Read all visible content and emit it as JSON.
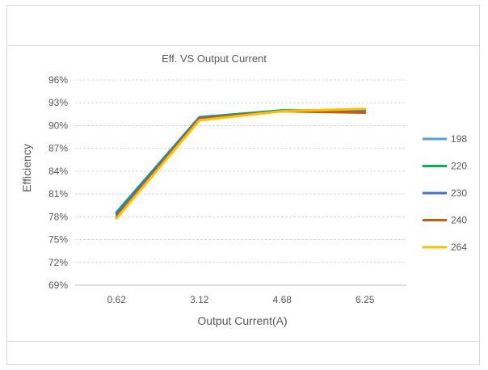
{
  "chart_data": {
    "type": "line",
    "title": "Eff. VS Output Current",
    "xlabel": "Output Current(A)",
    "ylabel": "Efficiency",
    "categories": [
      "0.62",
      "3.12",
      "4.68",
      "6.25"
    ],
    "yticks": [
      "96%",
      "93%",
      "90%",
      "87%",
      "84%",
      "81%",
      "78%",
      "75%",
      "72%",
      "69%"
    ],
    "ylim": [
      69,
      96
    ],
    "grid": true,
    "legend_position": "right",
    "series": [
      {
        "name": "198",
        "color": "#5b9bd5",
        "values": [
          78.2,
          91.0,
          91.9,
          92.1
        ]
      },
      {
        "name": "220",
        "color": "#00b050",
        "values": [
          78.6,
          91.1,
          92.0,
          92.0
        ]
      },
      {
        "name": "230",
        "color": "#4472c4",
        "values": [
          78.4,
          91.0,
          91.9,
          92.0
        ]
      },
      {
        "name": "240",
        "color": "#c55a11",
        "values": [
          78.0,
          90.9,
          91.9,
          91.7
        ]
      },
      {
        "name": "264",
        "color": "#ffc000",
        "values": [
          77.8,
          90.7,
          91.9,
          92.2
        ]
      }
    ]
  }
}
